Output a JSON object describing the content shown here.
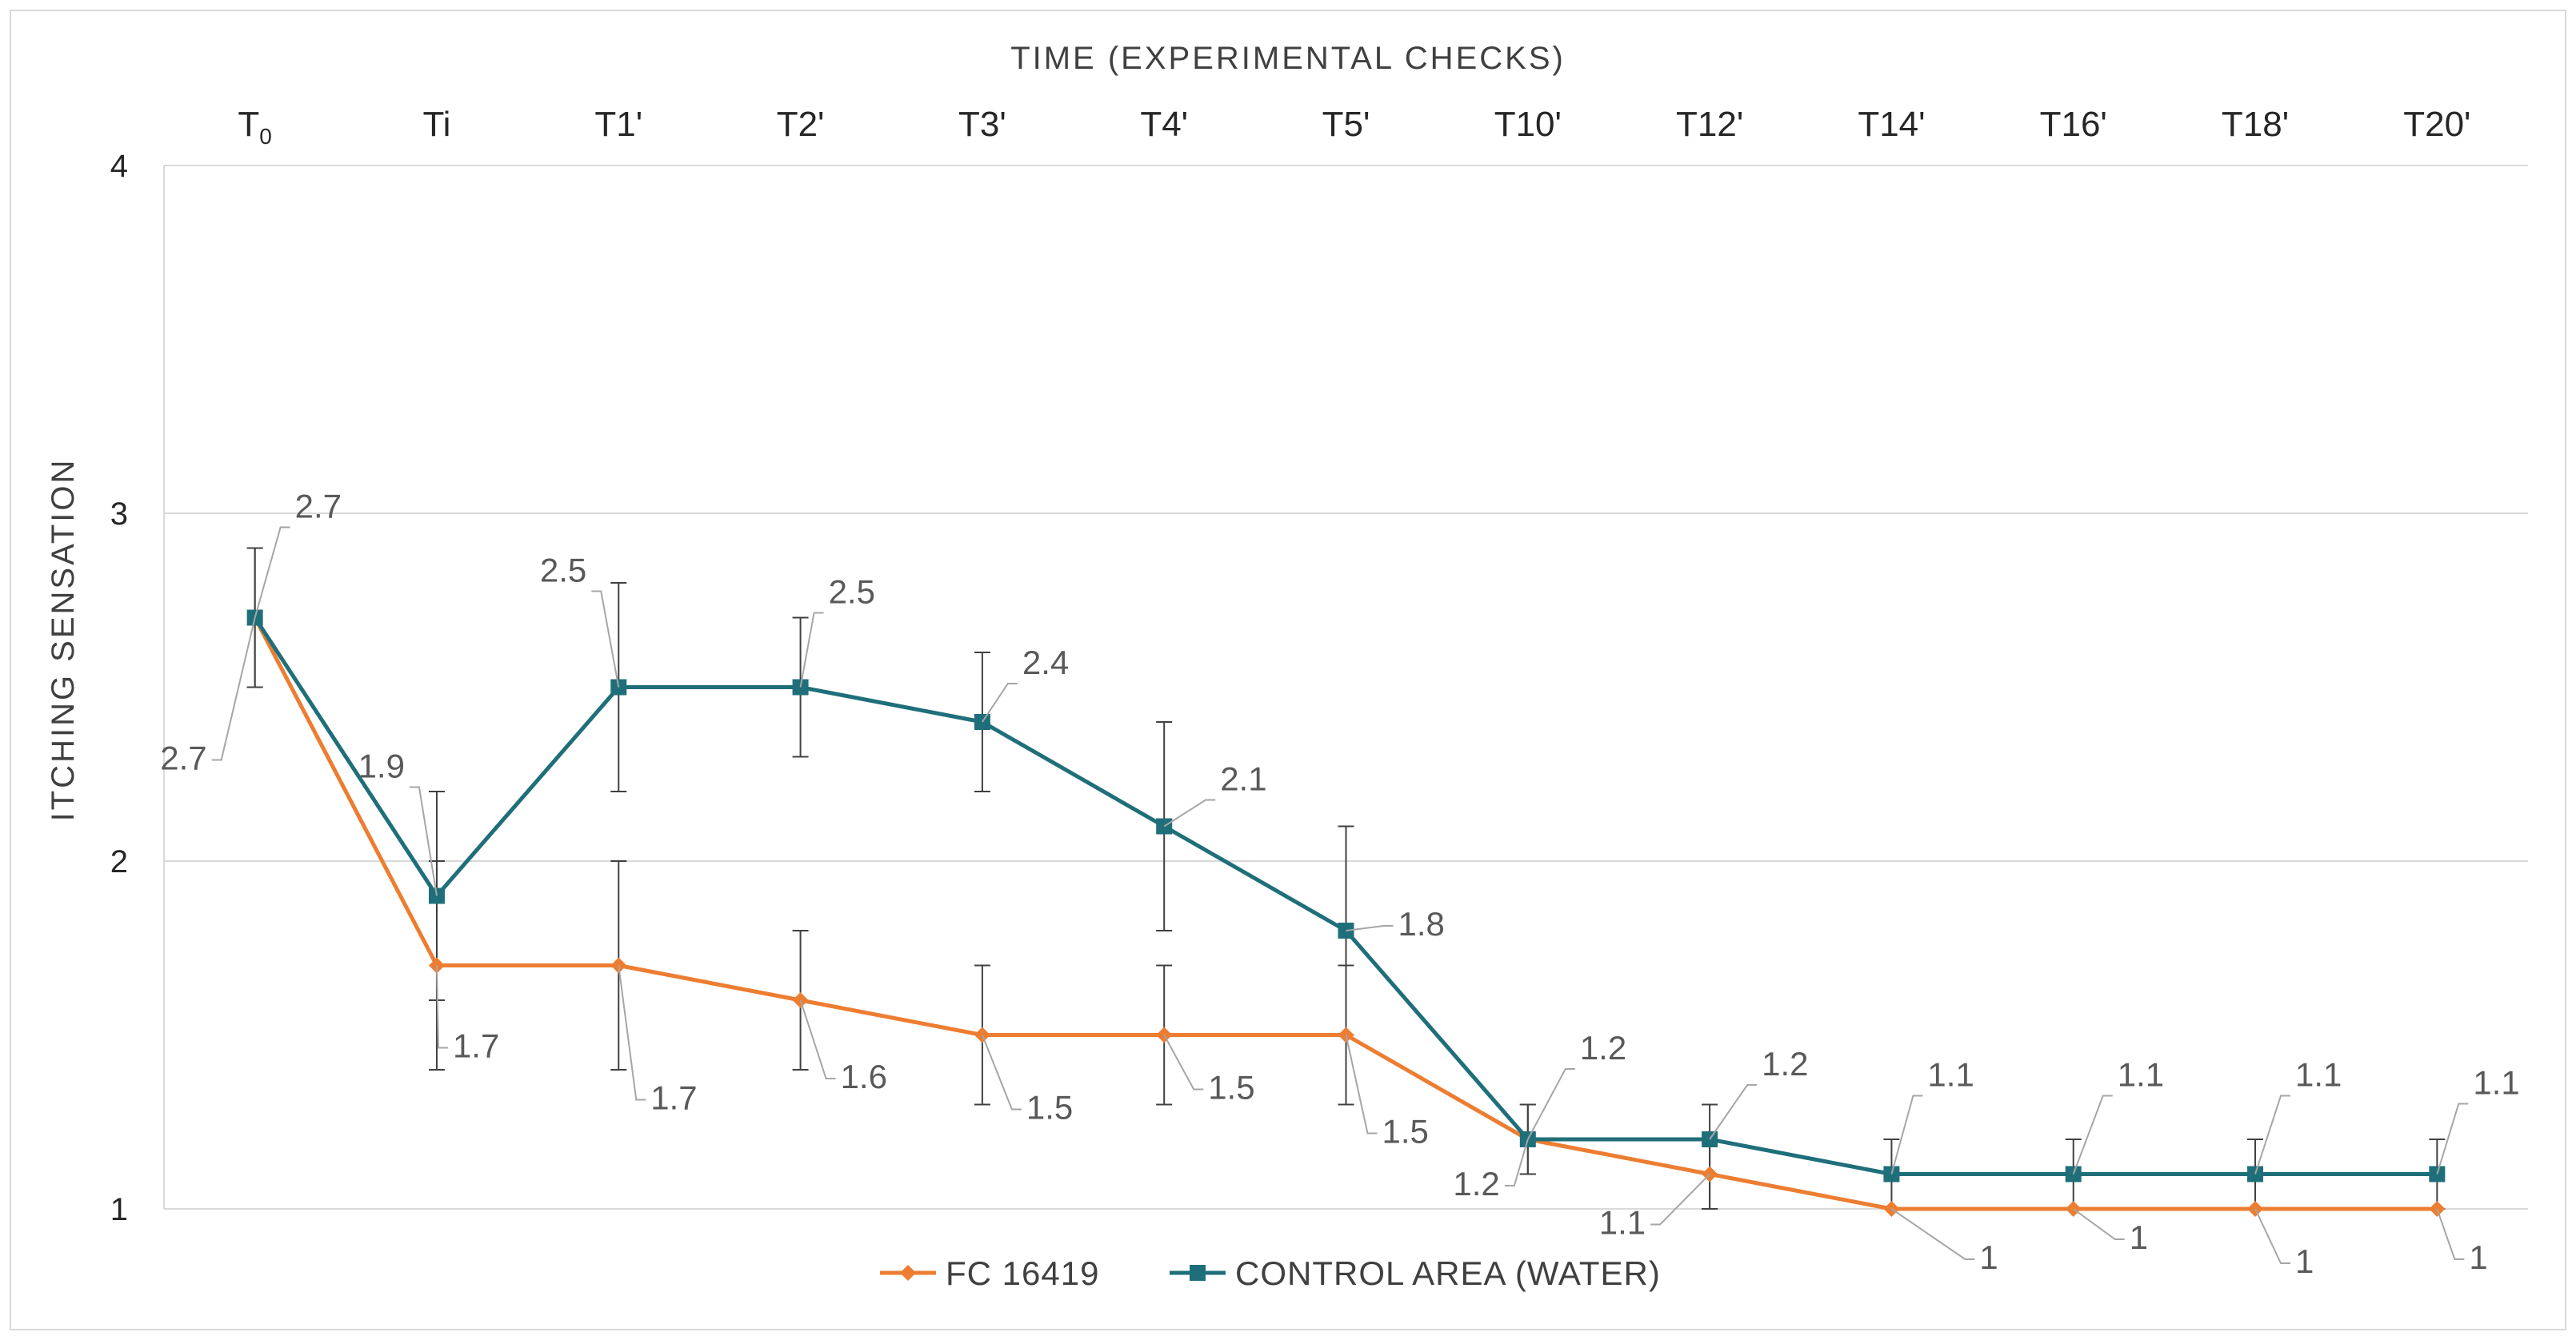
{
  "chart_data": {
    "type": "line",
    "title": "",
    "xlabel": "TIME (EXPERIMENTAL CHECKS)",
    "ylabel": "ITCHING SENSATION",
    "categories": [
      {
        "main": "T",
        "sub": "0"
      },
      {
        "main": "Ti",
        "sub": ""
      },
      {
        "main": "T1'",
        "sub": ""
      },
      {
        "main": "T2'",
        "sub": ""
      },
      {
        "main": "T3'",
        "sub": ""
      },
      {
        "main": "T4'",
        "sub": ""
      },
      {
        "main": "T5'",
        "sub": ""
      },
      {
        "main": "T10'",
        "sub": ""
      },
      {
        "main": "T12'",
        "sub": ""
      },
      {
        "main": "T14'",
        "sub": ""
      },
      {
        "main": "T16'",
        "sub": ""
      },
      {
        "main": "T18'",
        "sub": ""
      },
      {
        "main": "T20'",
        "sub": ""
      }
    ],
    "ylim": [
      1,
      4
    ],
    "yticks": [
      "1",
      "2",
      "3",
      "4"
    ],
    "grid": true,
    "legend_position": "bottom",
    "series": [
      {
        "name": "FC 16419",
        "color": "#ed7d31",
        "marker": "diamond",
        "values": [
          2.7,
          1.7,
          1.7,
          1.6,
          1.5,
          1.5,
          1.5,
          1.2,
          1.1,
          1,
          1,
          1,
          1
        ],
        "labels": [
          "2.7",
          "1.7",
          "1.7",
          "1.6",
          "1.5",
          "1.5",
          "1.5",
          "1.2",
          "1.1",
          "1",
          "1",
          "1",
          "1"
        ]
      },
      {
        "name": "CONTROL AREA (WATER)",
        "color": "#1f6f7a",
        "marker": "square",
        "values": [
          2.7,
          1.9,
          2.5,
          2.5,
          2.4,
          2.1,
          1.8,
          1.2,
          1.2,
          1.1,
          1.1,
          1.1,
          1.1
        ],
        "labels": [
          "2.7",
          "1.9",
          "2.5",
          "2.5",
          "2.4",
          "2.1",
          "1.8",
          "1.2",
          "1.2",
          "1.1",
          "1.1",
          "1.1",
          "1.1"
        ],
        "error_bars": [
          [
            2.5,
            2.9
          ],
          [
            1.6,
            2.2
          ],
          [
            2.2,
            2.8
          ],
          [
            2.3,
            2.7
          ],
          [
            2.2,
            2.6
          ],
          [
            1.8,
            2.4
          ],
          [
            1.5,
            2.1
          ],
          [
            1.1,
            1.3
          ],
          [
            1.0,
            1.3
          ],
          [
            1.0,
            1.2
          ],
          [
            1.0,
            1.2
          ],
          [
            1.0,
            1.2
          ],
          [
            1.0,
            1.2
          ]
        ]
      }
    ],
    "fc_error_bars": [
      [
        2.5,
        2.9
      ],
      [
        1.4,
        2.0
      ],
      [
        1.4,
        2.0
      ],
      [
        1.4,
        1.8
      ],
      [
        1.3,
        1.7
      ],
      [
        1.3,
        1.7
      ],
      [
        1.3,
        1.7
      ],
      [
        1.1,
        1.3
      ],
      [
        1.0,
        1.2
      ],
      [
        1.0,
        1.0
      ],
      [
        1.0,
        1.0
      ],
      [
        1.0,
        1.0
      ],
      [
        1.0,
        1.0
      ]
    ]
  }
}
